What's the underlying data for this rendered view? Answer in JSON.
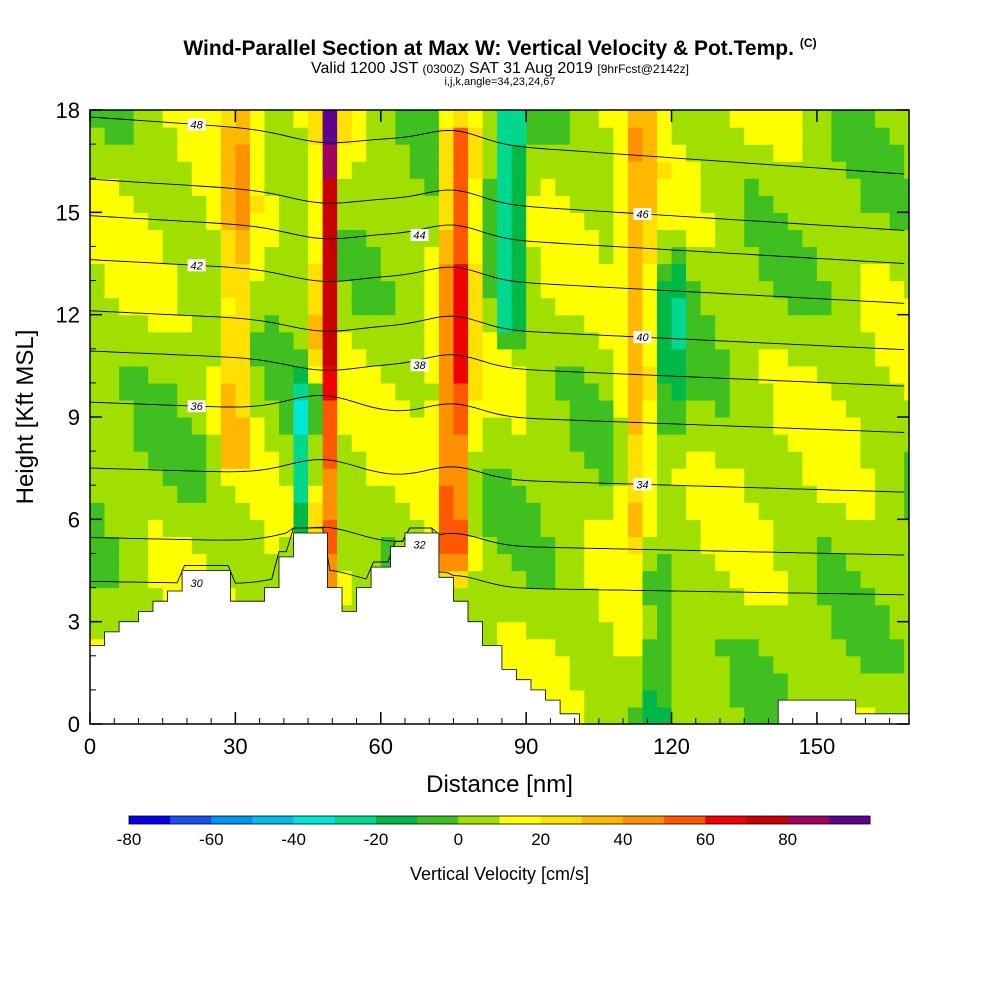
{
  "title": {
    "main": "Wind-Parallel Section at Max W: Vertical Velocity & Pot.Temp.",
    "copyright": "(C)",
    "valid_label": "Valid 1200 JST",
    "utc": "(0300Z)",
    "date": "SAT 31 Aug 2019",
    "forecast": "[9hrFcst@2142z]",
    "params": "i,j,k,angle=34,23,24,67"
  },
  "chart_data": {
    "type": "contour",
    "xlabel": "Distance [nm]",
    "ylabel": "Height [Kft MSL]",
    "xlim": [
      0,
      169
    ],
    "ylim": [
      0,
      18
    ],
    "xticks": [
      "0",
      "30",
      "60",
      "90",
      "120",
      "150"
    ],
    "yticks": [
      "0",
      "3",
      "6",
      "9",
      "12",
      "15",
      "18"
    ],
    "colorbar": {
      "label": "Vertical Velocity [cm/s]",
      "tick_labels": [
        "-80",
        "-60",
        "-40",
        "-20",
        "0",
        "20",
        "40",
        "60",
        "80"
      ],
      "levels": [
        -80,
        -70,
        -60,
        -50,
        -40,
        -30,
        -20,
        -10,
        0,
        10,
        20,
        30,
        40,
        50,
        60,
        70,
        80,
        90
      ],
      "colors": [
        "#0000e8",
        "#1a50f0",
        "#0094f0",
        "#00bce8",
        "#00e8d8",
        "#00d890",
        "#00b848",
        "#40c020",
        "#a0e000",
        "#ffff00",
        "#ffe000",
        "#ffb800",
        "#ff9000",
        "#ff5800",
        "#f00000",
        "#c80000",
        "#a00060",
        "#600090"
      ]
    },
    "theta_contours": [
      {
        "label": "30",
        "y_at_120": 3.9
      },
      {
        "label": "32",
        "y_at_120": 5.1
      },
      {
        "label": "34",
        "y_at_120": 7.0
      },
      {
        "label": "36",
        "y_at_120": 8.8
      },
      {
        "label": "38",
        "y_at_120": 10.2
      },
      {
        "label": "40",
        "y_at_120": 11.3
      },
      {
        "label": "42",
        "y_at_120": 12.7
      },
      {
        "label": "44",
        "y_at_120": 13.9
      },
      {
        "label": "46",
        "y_at_120": 14.9
      },
      {
        "label": "48",
        "y_at_120": 16.6
      }
    ],
    "terrain": [
      [
        0,
        2.3
      ],
      [
        3,
        2.3
      ],
      [
        3,
        2.7
      ],
      [
        6,
        2.7
      ],
      [
        6,
        3.0
      ],
      [
        10,
        3.0
      ],
      [
        10,
        3.3
      ],
      [
        13,
        3.3
      ],
      [
        13,
        3.6
      ],
      [
        16,
        3.6
      ],
      [
        16,
        3.9
      ],
      [
        19,
        3.9
      ],
      [
        19,
        4.5
      ],
      [
        29,
        4.5
      ],
      [
        29,
        3.6
      ],
      [
        36,
        3.6
      ],
      [
        36,
        4.0
      ],
      [
        39,
        4.0
      ],
      [
        39,
        4.9
      ],
      [
        42,
        4.9
      ],
      [
        42,
        5.6
      ],
      [
        49,
        5.6
      ],
      [
        49,
        4.0
      ],
      [
        52,
        4.0
      ],
      [
        52,
        3.3
      ],
      [
        55,
        3.3
      ],
      [
        55,
        4.0
      ],
      [
        58,
        4.0
      ],
      [
        58,
        4.6
      ],
      [
        62,
        4.6
      ],
      [
        62,
        5.2
      ],
      [
        65,
        5.2
      ],
      [
        65,
        5.6
      ],
      [
        72,
        5.6
      ],
      [
        72,
        4.3
      ],
      [
        75,
        4.3
      ],
      [
        75,
        3.6
      ],
      [
        78,
        3.6
      ],
      [
        78,
        3.0
      ],
      [
        81,
        3.0
      ],
      [
        81,
        2.3
      ],
      [
        85,
        2.3
      ],
      [
        85,
        1.6
      ],
      [
        88,
        1.6
      ],
      [
        88,
        1.3
      ],
      [
        91,
        1.3
      ],
      [
        91,
        1.0
      ],
      [
        94,
        1.0
      ],
      [
        94,
        0.7
      ],
      [
        97,
        0.7
      ],
      [
        97,
        0.3
      ],
      [
        101,
        0.3
      ],
      [
        101,
        0
      ],
      [
        142,
        0
      ],
      [
        142,
        0.7
      ],
      [
        158,
        0.7
      ],
      [
        158,
        0.3
      ],
      [
        169,
        0.3
      ]
    ],
    "vv_features": [
      {
        "x": 48.5,
        "y_range": [
          3.8,
          18
        ],
        "peak": 80
      },
      {
        "x": 45.5,
        "y_range": [
          3.8,
          9.5
        ],
        "peak": -45
      },
      {
        "x": 75.5,
        "y_range": [
          5.0,
          17
        ],
        "peak": 55
      },
      {
        "x": 86,
        "y_range": [
          12,
          18
        ],
        "peak": -35
      },
      {
        "x": 30,
        "y_range": [
          8,
          18
        ],
        "peak": 30
      },
      {
        "x": 113,
        "y_range": [
          6,
          18
        ],
        "peak": 30
      },
      {
        "x": 118,
        "y_range": [
          0.3,
          4
        ],
        "peak": -20
      },
      {
        "x": 120,
        "y_range": [
          9,
          13
        ],
        "peak": -20
      }
    ]
  }
}
